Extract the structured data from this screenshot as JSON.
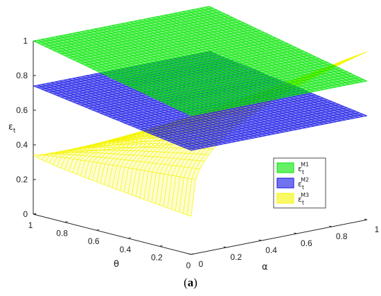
{
  "chart_data": {
    "type": "surface3d",
    "xlabel": "α",
    "ylabel": "θ",
    "zlabel": "ε",
    "zlabel_sub": "t",
    "xlim": [
      0,
      1
    ],
    "ylim": [
      0,
      1
    ],
    "zlim": [
      0,
      1
    ],
    "x_ticks": [
      "0",
      "0.2",
      "0.4",
      "0.6",
      "0.8",
      "1"
    ],
    "y_ticks": [
      "0",
      "0.2",
      "0.4",
      "0.6",
      "0.8",
      "1"
    ],
    "z_ticks": [
      "0",
      "0.2",
      "0.4",
      "0.6",
      "0.8",
      "1"
    ],
    "surfaces": [
      {
        "key": "M1",
        "legend_base": "ε",
        "legend_sub": "t",
        "legend_sup": "M1",
        "color": "#00e600",
        "description_values": {
          "z_at_corner_alpha0_theta1": 1.0,
          "z_at_corner_alpha1_theta0": 0.8
        }
      },
      {
        "key": "M2",
        "legend_base": "ε",
        "legend_sub": "t",
        "legend_sup": "M2",
        "color": "#1414e6",
        "description_values": {
          "z_at_corner_alpha0_theta1": 0.74,
          "z_at_corner_alpha1_theta0": 0.6
        }
      },
      {
        "key": "M3",
        "legend_base": "ε",
        "legend_sub": "t",
        "legend_sup": "M3",
        "color": "#f5f500",
        "description_values": {
          "z_at_alpha0_theta1": 0.34,
          "z_at_alpha1_theta1": 0.22,
          "z_at_alpha1_theta0": 0.97
        }
      }
    ],
    "legend_position": "right"
  },
  "caption": {
    "open": "(",
    "label": "a",
    "close": ")"
  }
}
